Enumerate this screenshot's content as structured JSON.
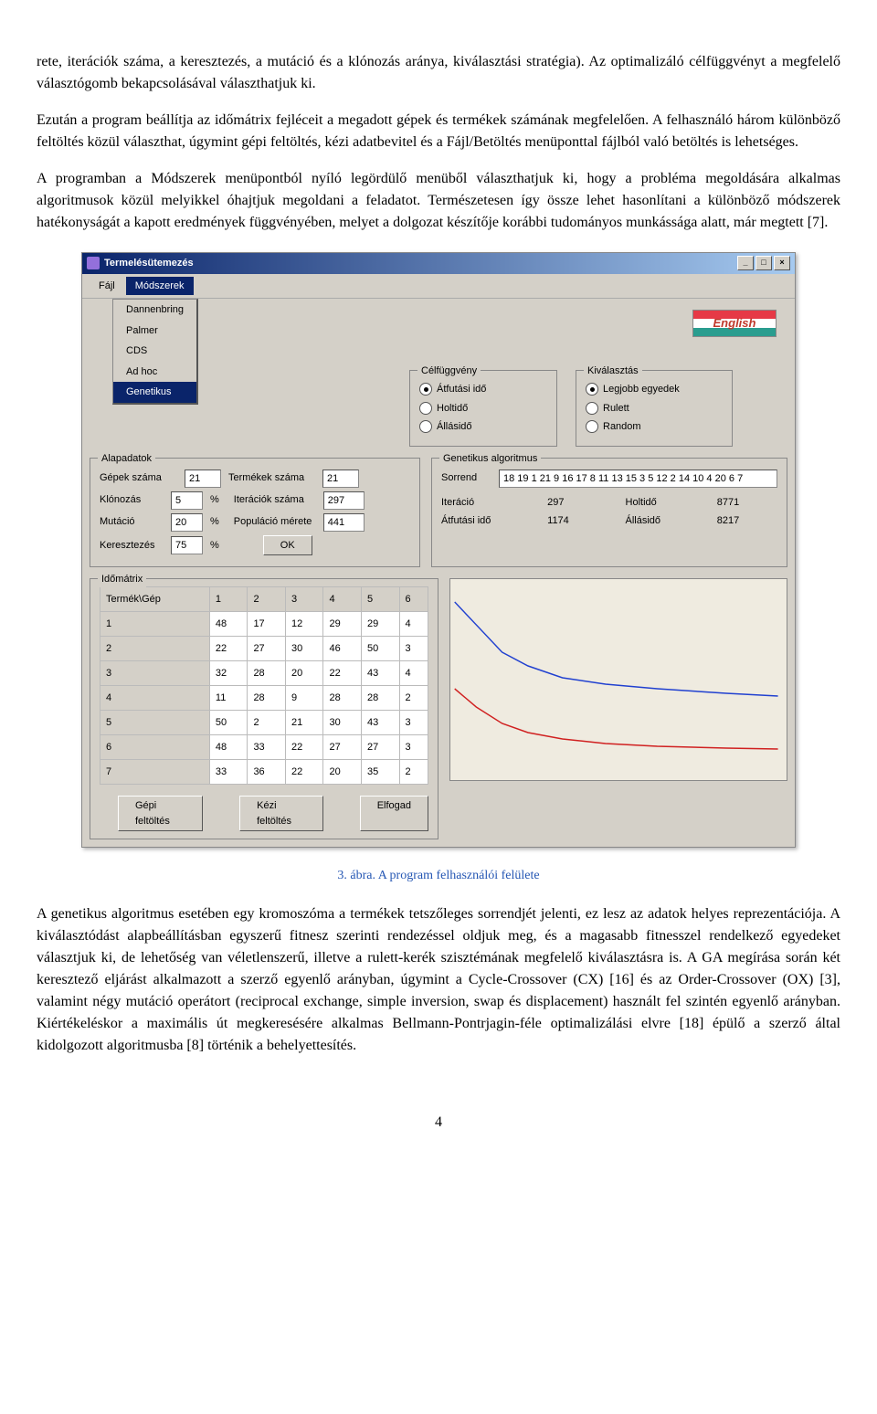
{
  "paragraphs": {
    "p1": "rete, iterációk száma, a keresztezés, a mutáció és a klónozás aránya, kiválasztási stratégia). Az optimalizáló célfüggvényt a megfelelő választógomb bekapcsolásával választhatjuk ki.",
    "p2": "Ezután a program beállítja az időmátrix fejléceit a megadott gépek és termékek számának megfelelően. A felhasználó három különböző feltöltés közül választhat, úgymint gépi feltöltés, kézi adatbevitel és a Fájl/Betöltés menüponttal fájlból való betöltés is lehetséges.",
    "p3": "A programban a Módszerek menüpontból nyíló legördülő menüből választhatjuk ki, hogy a probléma megoldására alkalmas algoritmusok közül melyikkel óhajtjuk megoldani a feladatot. Természetesen így össze lehet hasonlítani a különböző módszerek hatékonyságát a kapott eredmények függvényében, melyet a dolgozat készítője korábbi tudományos munkássága alatt, már megtett [7].",
    "p4": "A genetikus algoritmus esetében egy kromoszóma a termékek tetszőleges sorrendjét jelenti, ez lesz az adatok helyes reprezentációja. A kiválasztódást alapbeállításban egyszerű fitnesz szerinti rendezéssel oldjuk meg, és a magasabb fitnesszel rendelkező egyedeket választjuk ki, de lehetőség van véletlenszerű, illetve a rulett-kerék szisztémának megfelelő kiválasztásra is. A GA megírása során két keresztező eljárást alkalmazott a szerző egyenlő arányban, úgymint a Cycle-Crossover (CX) [16] és az Order-Crossover (OX) [3], valamint négy mutáció operátort (reciprocal exchange, simple inversion, swap és displacement) használt fel szintén egyenlő arányban. Kiértékeléskor a maximális út megkeresésére alkalmas Bellmann-Pontrjagin-féle optimalizálási elvre [18] épülő a szerző által kidolgozott algoritmusba [8] történik a behelyettesítés."
  },
  "caption": "3. ábra. A program felhasználói felülete",
  "window": {
    "title": "Termelésütemezés",
    "menus": {
      "fajl": "Fájl",
      "modszerek": "Módszerek"
    },
    "dropdown": [
      "Dannenbring",
      "Palmer",
      "CDS",
      "Ad hoc",
      "Genetikus"
    ],
    "flag": "English",
    "groups": {
      "celfuggveny": {
        "title": "Célfüggvény",
        "options": [
          "Átfutási idő",
          "Holtidő",
          "Állásidő"
        ]
      },
      "kivalasztas": {
        "title": "Kiválasztás",
        "options": [
          "Legjobb egyedek",
          "Rulett",
          "Random"
        ]
      },
      "alapadatok": {
        "title": "Alapadatok",
        "gepek_label": "Gépek száma",
        "gepek_val": "21",
        "termekek_label": "Termékek száma",
        "termekek_val": "21",
        "klonozas_label": "Klónozás",
        "klonozas_val": "5",
        "mutacio_label": "Mutáció",
        "mutacio_val": "20",
        "keresztezes_label": "Keresztezés",
        "keresztezes_val": "75",
        "iteracio_label": "Iterációk száma",
        "iteracio_val": "297",
        "populacio_label": "Populáció mérete",
        "populacio_val": "441",
        "percent": "%",
        "ok": "OK"
      },
      "ga": {
        "title": "Genetikus algoritmus",
        "sorrend_label": "Sorrend",
        "sorrend_val": "18 19 1 21 9 16 17 8 11 13 15 3 5 12 2 14 10 4 20 6 7",
        "iter_label": "Iteráció",
        "iter_val": "297",
        "holt_label": "Holtidő",
        "holt_val": "8771",
        "atfut_label": "Átfutási idő",
        "atfut_val": "1174",
        "allas_label": "Állásidő",
        "allas_val": "8217"
      },
      "idomatrix": {
        "title": "Időmátrix",
        "corner": "Termék\\Gép",
        "cols": [
          "1",
          "2",
          "3",
          "4",
          "5",
          "6"
        ],
        "rows": [
          {
            "h": "1",
            "c": [
              "48",
              "17",
              "12",
              "29",
              "29",
              "4"
            ]
          },
          {
            "h": "2",
            "c": [
              "22",
              "27",
              "30",
              "46",
              "50",
              "3"
            ]
          },
          {
            "h": "3",
            "c": [
              "32",
              "28",
              "20",
              "22",
              "43",
              "4"
            ]
          },
          {
            "h": "4",
            "c": [
              "11",
              "28",
              "9",
              "28",
              "28",
              "2"
            ]
          },
          {
            "h": "5",
            "c": [
              "50",
              "2",
              "21",
              "30",
              "43",
              "3"
            ]
          },
          {
            "h": "6",
            "c": [
              "48",
              "33",
              "22",
              "27",
              "27",
              "3"
            ]
          },
          {
            "h": "7",
            "c": [
              "33",
              "36",
              "22",
              "20",
              "35",
              "2"
            ]
          }
        ]
      }
    },
    "buttons": {
      "gepi": "Gépi feltöltés",
      "kezi": "Kézi feltöltés",
      "elfogad": "Elfogad"
    }
  },
  "chart": {
    "background": "#efebe0",
    "line1_color": "#2040d0",
    "line2_color": "#d02020",
    "line1_points": "5,25 30,50 60,80 90,95 130,108 180,115 240,120 320,125 380,128",
    "line2_points": "5,120 30,140 60,158 90,168 130,175 180,180 240,183 320,185 380,186"
  },
  "page_num": "4"
}
